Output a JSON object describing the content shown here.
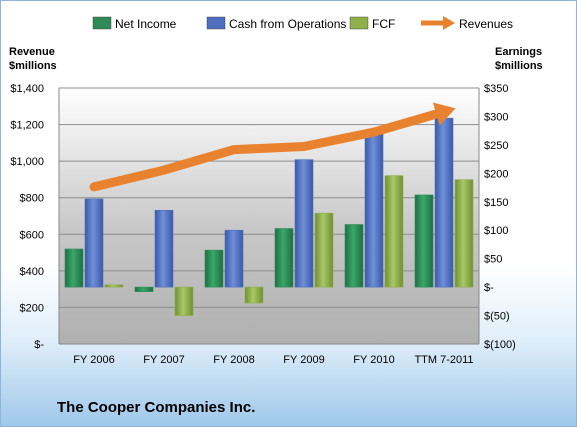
{
  "company_name": "The Cooper Companies Inc.",
  "colors": {
    "net_income": "#2e8b57",
    "cash_from_operations": "#4f6fbe",
    "fcf": "#8fb04a",
    "revenues": "#e8822e"
  },
  "chart_data": {
    "type": "bar",
    "categories": [
      "FY 2006",
      "FY 2007",
      "FY 2008",
      "FY 2009",
      "FY 2010",
      "TTM 7-2011"
    ],
    "left_axis": {
      "title_line1": "Revenue",
      "title_line2": "$millions",
      "ylim": [
        0,
        1400
      ],
      "ticks": [
        {
          "value": 0,
          "label": "$-"
        },
        {
          "value": 200,
          "label": "$200"
        },
        {
          "value": 400,
          "label": "$400"
        },
        {
          "value": 600,
          "label": "$600"
        },
        {
          "value": 800,
          "label": "$800"
        },
        {
          "value": 1000,
          "label": "$1,000"
        },
        {
          "value": 1200,
          "label": "$1,200"
        },
        {
          "value": 1400,
          "label": "$1,400"
        }
      ]
    },
    "right_axis": {
      "title_line1": "Earnings",
      "title_line2": "$millions",
      "ylim": [
        -100,
        350
      ],
      "ticks": [
        {
          "value": -100,
          "label": "$(100)"
        },
        {
          "value": -50,
          "label": "$(50)"
        },
        {
          "value": 0,
          "label": "$-"
        },
        {
          "value": 50,
          "label": "$50"
        },
        {
          "value": 100,
          "label": "$100"
        },
        {
          "value": 150,
          "label": "$150"
        },
        {
          "value": 200,
          "label": "$200"
        },
        {
          "value": 250,
          "label": "$250"
        },
        {
          "value": 300,
          "label": "$300"
        },
        {
          "value": 350,
          "label": "$350"
        }
      ]
    },
    "series": [
      {
        "name": "Net Income",
        "axis": "right",
        "kind": "bar",
        "values": [
          67,
          -8,
          65,
          103,
          110,
          162
        ]
      },
      {
        "name": "Cash from Operations",
        "axis": "right",
        "kind": "bar",
        "values": [
          155,
          135,
          100,
          224,
          275,
          297
        ]
      },
      {
        "name": "FCF",
        "axis": "right",
        "kind": "bar",
        "values": [
          4,
          -50,
          -28,
          130,
          196,
          189
        ]
      },
      {
        "name": "Revenues",
        "axis": "left",
        "kind": "arrow-line",
        "values": [
          859,
          951,
          1063,
          1080,
          1159,
          1270
        ]
      }
    ],
    "legend_position": "top",
    "grid": true
  }
}
